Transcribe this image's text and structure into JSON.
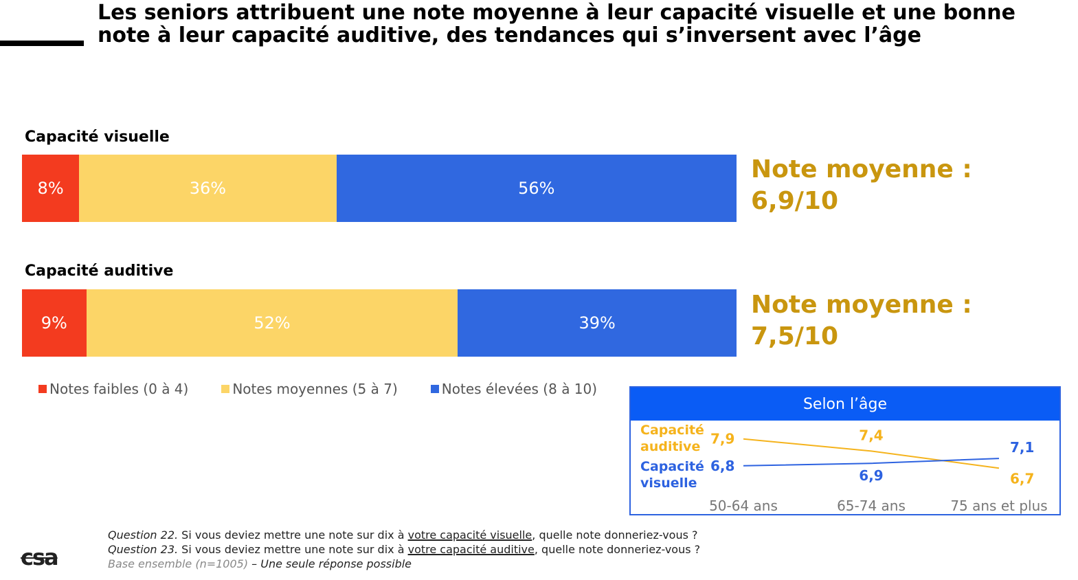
{
  "title": "Les seniors attribuent une note moyenne à leur capacité visuelle et une bonne note à leur capacité auditive, des tendances qui s’inversent avec l’âge",
  "colors": {
    "low": "#f33b1f",
    "mid": "#fcd567",
    "high": "#3068e0",
    "avg_text": "#c9960f",
    "inset_auditive": "#f5b31c",
    "inset_visuelle": "#2d62e0",
    "inset_header": "#0a5cf5"
  },
  "chart_data": [
    {
      "type": "bar",
      "orientation": "horizontal",
      "stacked": true,
      "series_names": [
        "Notes faibles (0 à 4)",
        "Notes moyennes (5 à 7)",
        "Notes élevées (8 à 10)"
      ],
      "bars": [
        {
          "label": "Capacité visuelle",
          "values": [
            8,
            36,
            56
          ],
          "value_labels": [
            "8%",
            "36%",
            "56%"
          ],
          "average_label": "Note moyenne :",
          "average_value": "6,9/10"
        },
        {
          "label": "Capacité auditive",
          "values": [
            9,
            52,
            39
          ],
          "value_labels": [
            "9%",
            "52%",
            "39%"
          ],
          "average_label": "Note moyenne :",
          "average_value": "7,5/10"
        }
      ],
      "legend": {
        "position": "bottom",
        "items": [
          "Notes faibles (0 à 4)",
          "Notes moyennes (5 à 7)",
          "Notes élevées (8 à 10)"
        ]
      }
    },
    {
      "type": "line",
      "title": "Selon l’âge",
      "categories": [
        "50-64 ans",
        "65-74 ans",
        "75 ans et plus"
      ],
      "series": [
        {
          "name": "Capacité auditive",
          "values": [
            7.9,
            7.4,
            6.7
          ],
          "value_labels": [
            "7,9",
            "7,4",
            "6,7"
          ]
        },
        {
          "name": "Capacité visuelle",
          "values": [
            6.8,
            6.9,
            7.1
          ],
          "value_labels": [
            "6,8",
            "6,9",
            "7,1"
          ]
        }
      ],
      "ylim": [
        6.4,
        8.2
      ],
      "grid": false
    }
  ],
  "footnotes": {
    "q22": {
      "prefix": "Question 22.",
      "before": " Si vous deviez mettre une note sur dix à ",
      "underlined": "votre capacité visuelle",
      "after": ", quelle note donneriez-vous ?"
    },
    "q23": {
      "prefix": "Question 23.",
      "before": " Si vous deviez mettre une note sur dix à ",
      "underlined": "votre capacité auditive",
      "after": ", quelle note donneriez-vous ?"
    },
    "base_muted": "Base ensemble (n=1005)",
    "base_rest": " – Une seule réponse possible"
  },
  "logo": "csa"
}
